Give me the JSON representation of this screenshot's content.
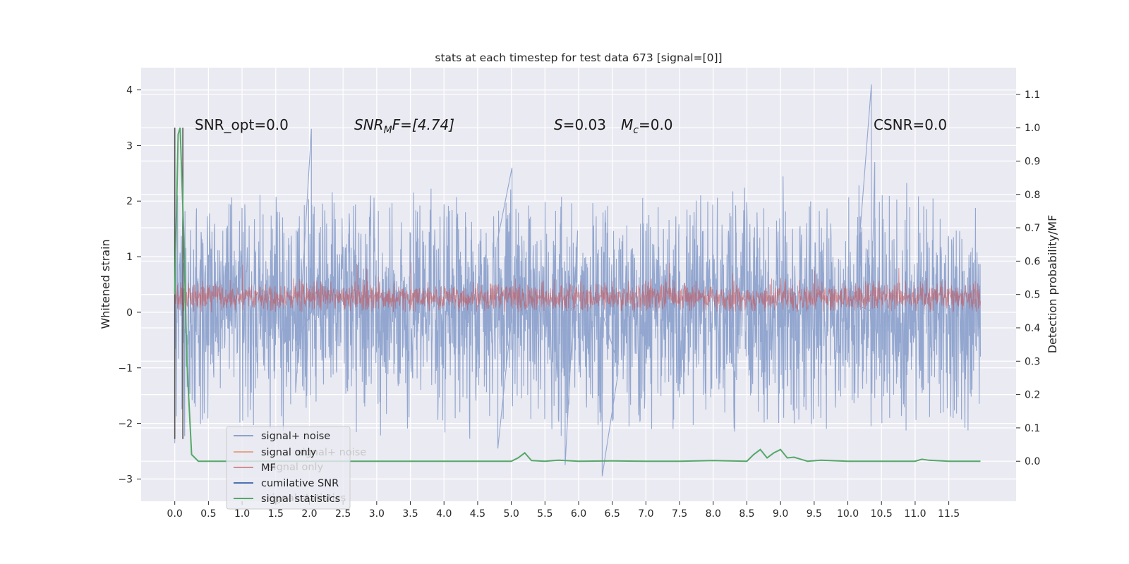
{
  "chart_data": {
    "type": "line",
    "title": "stats at each timestep for test data 673 [signal=[0]]",
    "xlabel": "",
    "ylabel": "Whitened strain",
    "y2label": "Detection probability/MF",
    "xlim": [
      -0.5,
      12.5
    ],
    "ylim": [
      -3.4,
      4.4
    ],
    "y2lim": [
      -0.12,
      1.18
    ],
    "x_ticks": [
      "0.0",
      "0.5",
      "1.0",
      "1.5",
      "2.0",
      "2.5",
      "3.0",
      "3.5",
      "4.0",
      "4.5",
      "5.0",
      "5.5",
      "6.0",
      "6.5",
      "7.0",
      "7.5",
      "8.0",
      "8.5",
      "9.0",
      "9.5",
      "10.0",
      "10.5",
      "11.0",
      "11.5"
    ],
    "y_ticks": [
      4,
      3,
      2,
      1,
      0,
      -1,
      -2,
      -3
    ],
    "y_tick_labels": [
      "4",
      "3",
      "2",
      "1",
      "0",
      "−1",
      "−2",
      "−3"
    ],
    "y2_ticks": [
      1.1,
      1.0,
      0.9,
      0.8,
      0.7,
      0.6,
      0.5,
      0.4,
      0.3,
      0.2,
      0.1,
      0.0
    ],
    "y2_tick_labels": [
      "1.1",
      "1.0",
      "0.9",
      "0.8",
      "0.7",
      "0.6",
      "0.5",
      "0.4",
      "0.3",
      "0.2",
      "0.1",
      "0.0"
    ],
    "grid": true,
    "legend_position": "bottom-left",
    "annotations": {
      "snr_opt": "SNR_opt=0.0",
      "snr_mf_sym": "SNR",
      "snr_mf_sub": "M",
      "snr_mf_rest": "F=[4.74]",
      "s_sym": "S",
      "s_rest": "=0.03",
      "mc_sym": "M",
      "mc_sub": "c",
      "mc_rest": "=0.0",
      "csnr": "CSNR=0.0"
    },
    "series": [
      {
        "name": "signal+ noise",
        "color": "#8da2cc",
        "axis": "left",
        "style": "dense noise band",
        "x_range": [
          0.0,
          11.97
        ],
        "typical_band": [
          -1.6,
          1.6
        ],
        "peaks": [
          {
            "x": 2.03,
            "y": 3.3
          },
          {
            "x": 5.01,
            "y": 2.6
          },
          {
            "x": 10.35,
            "y": 4.1
          },
          {
            "x": 10.4,
            "y": 2.7
          },
          {
            "x": 6.35,
            "y": -2.95
          },
          {
            "x": 5.8,
            "y": -2.75
          },
          {
            "x": 4.8,
            "y": -2.45
          }
        ]
      },
      {
        "name": "signal only",
        "color": "#dd8452",
        "axis": "left",
        "values_note": ""
      },
      {
        "name": "MF",
        "color": "#c44e52",
        "axis": "left",
        "style": "dense noise band",
        "x_range": [
          0.0,
          11.97
        ],
        "typical_band": [
          0.0,
          0.55
        ]
      },
      {
        "name": "cumilative SNR",
        "color": "#4c72b0",
        "axis": "left"
      },
      {
        "name": "signal statistics",
        "color": "#55a868",
        "axis": "right",
        "x": [
          0.0,
          0.05,
          0.08,
          0.13,
          0.18,
          0.25,
          0.35,
          0.5,
          1.0,
          2.0,
          3.0,
          4.0,
          4.8,
          5.0,
          5.1,
          5.2,
          5.3,
          5.5,
          5.7,
          6.0,
          6.5,
          7.0,
          7.5,
          8.0,
          8.5,
          8.6,
          8.7,
          8.8,
          8.9,
          9.0,
          9.1,
          9.2,
          9.4,
          9.6,
          10.0,
          10.5,
          11.0,
          11.1,
          11.2,
          11.5,
          11.97
        ],
        "y": [
          0.5,
          0.98,
          1.0,
          0.7,
          0.3,
          0.02,
          0.0,
          0.0,
          0.0,
          0.0,
          0.0,
          0.0,
          0.0,
          0.0,
          0.01,
          0.025,
          0.002,
          0.0,
          0.003,
          0.0,
          0.001,
          0.0,
          0.0,
          0.002,
          0.0,
          0.02,
          0.035,
          0.01,
          0.025,
          0.035,
          0.01,
          0.012,
          0.0,
          0.003,
          0.0,
          0.0,
          0.0,
          0.006,
          0.003,
          0.0,
          0.0
        ]
      },
      {
        "name": "",
        "color": "#555555",
        "axis": "left",
        "style": "vertical marker lines",
        "x": [
          0.0,
          0.12
        ],
        "y_range": [
          -2.28,
          3.32
        ]
      }
    ]
  },
  "legend_ghost_text": [
    "signal+ noise",
    "signal only",
    "signal statistics"
  ]
}
